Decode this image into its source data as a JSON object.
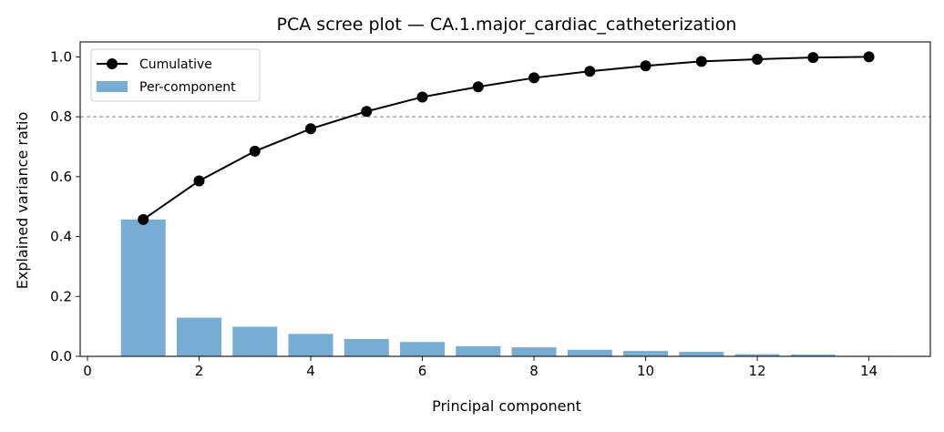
{
  "chart_data": {
    "type": "bar+line",
    "title": "PCA scree plot — CA.1.major_cardiac_catheterization",
    "xlabel": "Principal component",
    "ylabel": "Explained variance ratio",
    "xlim": [
      -0.13,
      15.1
    ],
    "ylim": [
      0,
      1.05
    ],
    "xticks": [
      0,
      2,
      4,
      6,
      8,
      10,
      12,
      14
    ],
    "yticks": [
      0.0,
      0.2,
      0.4,
      0.6,
      0.8,
      1.0
    ],
    "ytick_labels": [
      "0.0",
      "0.2",
      "0.4",
      "0.6",
      "0.8",
      "1.0"
    ],
    "grid": false,
    "legend_placement": "upper-left",
    "threshold": 0.8,
    "x": [
      1,
      2,
      3,
      4,
      5,
      6,
      7,
      8,
      9,
      10,
      11,
      12,
      13,
      14
    ],
    "series": [
      {
        "name": "Cumulative",
        "type": "line",
        "color": "#000000",
        "values": [
          0.457,
          0.586,
          0.685,
          0.76,
          0.818,
          0.866,
          0.9,
          0.93,
          0.952,
          0.97,
          0.985,
          0.992,
          0.998,
          1.0
        ]
      },
      {
        "name": "Per-component",
        "type": "bar",
        "color": "#77acd3",
        "values": [
          0.457,
          0.129,
          0.099,
          0.075,
          0.058,
          0.048,
          0.034,
          0.03,
          0.022,
          0.018,
          0.015,
          0.007,
          0.006,
          0.002
        ]
      }
    ],
    "threshold_color": "#808080"
  }
}
